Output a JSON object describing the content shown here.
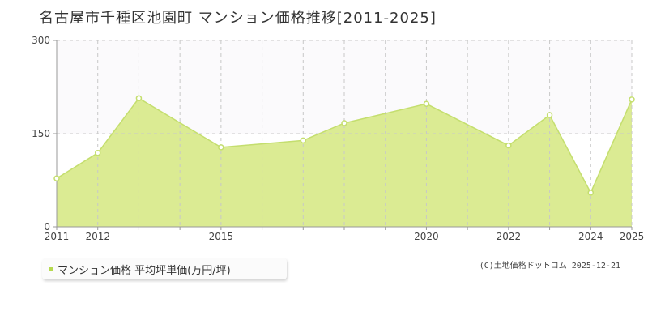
{
  "title": "名古屋市千種区池園町 マンション価格推移[2011-2025]",
  "legend": {
    "label": "マンション価格 平均坪単価(万円/坪)"
  },
  "copyright": "(C)土地価格ドットコム 2025-12-21",
  "colors": {
    "area": "#dbeb93",
    "line": "#c4de6e",
    "grid": "#c8c8c8",
    "marker": "#b5d94e",
    "band": "#fbfafc"
  },
  "chart_data": {
    "type": "area",
    "x": [
      2011,
      2012,
      2013,
      2015,
      2017,
      2018,
      2020,
      2022,
      2023,
      2024,
      2025
    ],
    "values": [
      78,
      119,
      207,
      128,
      139,
      167,
      198,
      131,
      180,
      55,
      205
    ],
    "xlim": [
      2011,
      2025
    ],
    "ylim": [
      0,
      300
    ],
    "yticks": [
      0,
      150,
      300
    ],
    "xtick_labels": [
      "2011",
      "2012",
      "2015",
      "2020",
      "2022",
      "2024",
      "2025"
    ],
    "xticks_all": [
      2011,
      2012,
      2013,
      2014,
      2015,
      2016,
      2017,
      2018,
      2019,
      2020,
      2021,
      2022,
      2023,
      2024,
      2025
    ],
    "grid": true
  }
}
